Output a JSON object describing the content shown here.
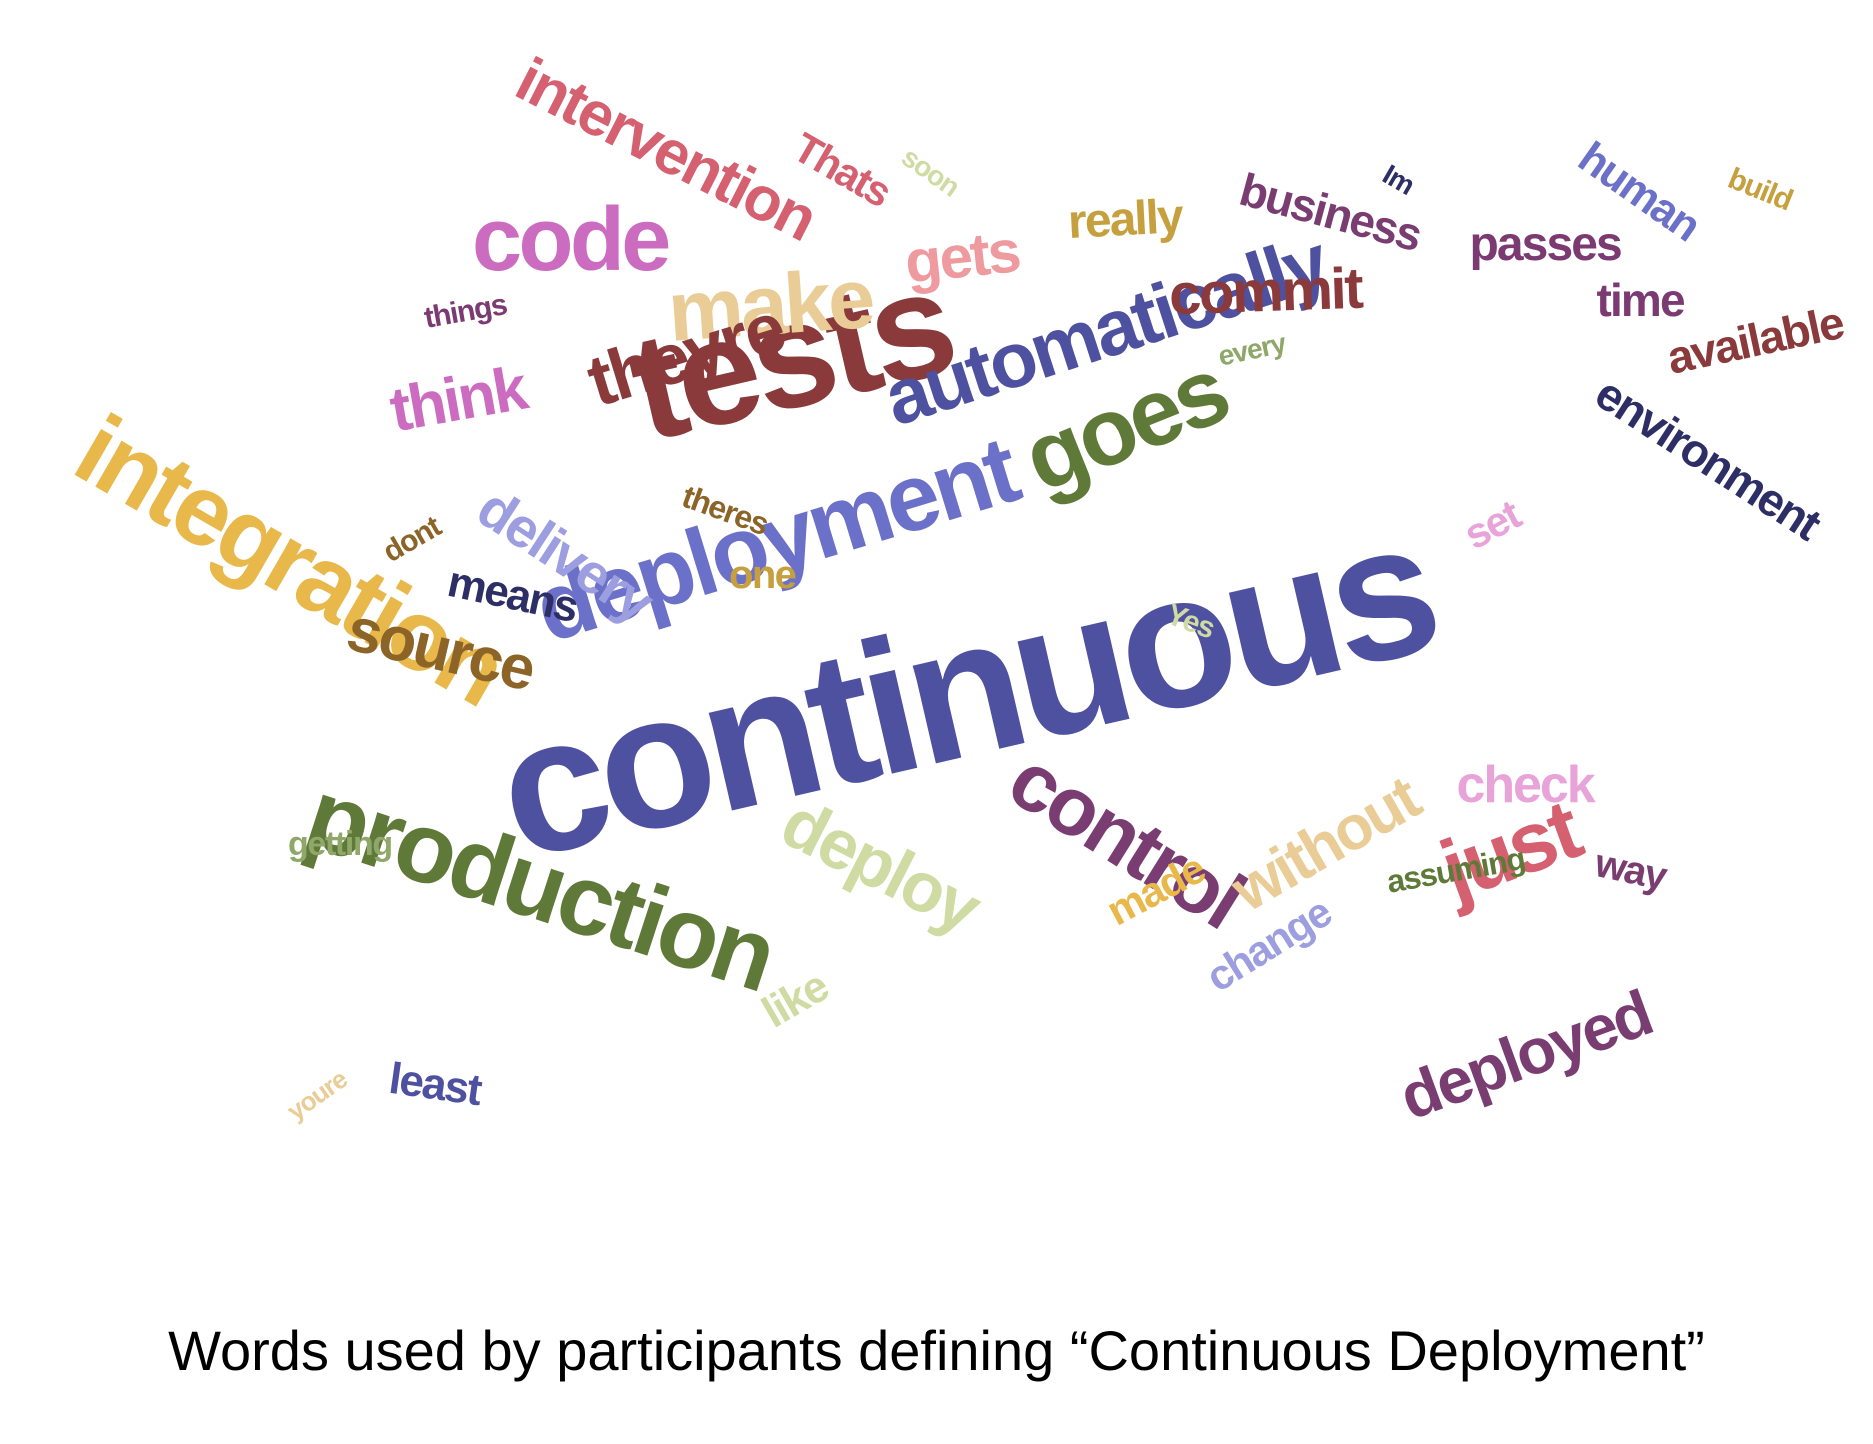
{
  "caption": "Words used by participants defining “Continuous Deployment”",
  "colors": {
    "navy": "#4e51a0",
    "periwinkle": "#6b70c9",
    "lavender": "#9c9ee0",
    "darkred": "#8a3a3a",
    "rose": "#d46070",
    "green": "#5f7a38",
    "sage": "#8fa86a",
    "lightgreen": "#cfdba2",
    "gold": "#e8b84a",
    "mustard": "#c6a03e",
    "tan": "#e9cc96",
    "brown": "#8c6428",
    "purple": "#7a3d72",
    "magenta": "#cc6cc0",
    "pink": "#e8a3d8",
    "salmon": "#ee9a9e",
    "plum": "#7b3a72",
    "darknavy": "#2d2e66"
  },
  "words": [
    {
      "text": "continuous",
      "color": "navy",
      "weight": 10
    },
    {
      "text": "tests",
      "color": "darkred",
      "weight": 8
    },
    {
      "text": "integration",
      "color": "gold",
      "weight": 7
    },
    {
      "text": "production",
      "color": "green",
      "weight": 7
    },
    {
      "text": "deployment",
      "color": "periwinkle",
      "weight": 7
    },
    {
      "text": "automatically",
      "color": "navy",
      "weight": 6
    },
    {
      "text": "goes",
      "color": "green",
      "weight": 6
    },
    {
      "text": "control",
      "color": "purple",
      "weight": 6
    },
    {
      "text": "deploy",
      "color": "lightgreen",
      "weight": 5
    },
    {
      "text": "code",
      "color": "magenta",
      "weight": 5
    },
    {
      "text": "make",
      "color": "tan",
      "weight": 5
    },
    {
      "text": "intervention",
      "color": "rose",
      "weight": 5
    },
    {
      "text": "theyre",
      "color": "darkred",
      "weight": 5
    },
    {
      "text": "just",
      "color": "rose",
      "weight": 5
    },
    {
      "text": "deployed",
      "color": "purple",
      "weight": 4
    },
    {
      "text": "delivery",
      "color": "lavender",
      "weight": 4
    },
    {
      "text": "source",
      "color": "brown",
      "weight": 4
    },
    {
      "text": "without",
      "color": "tan",
      "weight": 4
    },
    {
      "text": "commit",
      "color": "darkred",
      "weight": 4
    },
    {
      "text": "business",
      "color": "purple",
      "weight": 3
    },
    {
      "text": "gets",
      "color": "salmon",
      "weight": 4
    },
    {
      "text": "think",
      "color": "magenta",
      "weight": 4
    },
    {
      "text": "environment",
      "color": "darknavy",
      "weight": 3
    },
    {
      "text": "available",
      "color": "darkred",
      "weight": 3
    },
    {
      "text": "human",
      "color": "periwinkle",
      "weight": 3
    },
    {
      "text": "passes",
      "color": "plum",
      "weight": 3
    },
    {
      "text": "time",
      "color": "plum",
      "weight": 3
    },
    {
      "text": "means",
      "color": "darknavy",
      "weight": 3
    },
    {
      "text": "check",
      "color": "pink",
      "weight": 3
    },
    {
      "text": "way",
      "color": "purple",
      "weight": 3
    },
    {
      "text": "change",
      "color": "lavender",
      "weight": 3
    },
    {
      "text": "made",
      "color": "gold",
      "weight": 3
    },
    {
      "text": "like",
      "color": "lightgreen",
      "weight": 3
    },
    {
      "text": "least",
      "color": "navy",
      "weight": 3
    },
    {
      "text": "one",
      "color": "mustard",
      "weight": 3
    },
    {
      "text": "really",
      "color": "mustard",
      "weight": 3
    },
    {
      "text": "Thats",
      "color": "rose",
      "weight": 3
    },
    {
      "text": "set",
      "color": "pink",
      "weight": 3
    },
    {
      "text": "assuming",
      "color": "green",
      "weight": 2
    },
    {
      "text": "getting",
      "color": "sage",
      "weight": 2
    },
    {
      "text": "theres",
      "color": "brown",
      "weight": 2
    },
    {
      "text": "things",
      "color": "plum",
      "weight": 2
    },
    {
      "text": "dont",
      "color": "brown",
      "weight": 2
    },
    {
      "text": "every",
      "color": "sage",
      "weight": 2
    },
    {
      "text": "Yes",
      "color": "lightgreen",
      "weight": 2
    },
    {
      "text": "soon",
      "color": "lightgreen",
      "weight": 2
    },
    {
      "text": "build",
      "color": "mustard",
      "weight": 2
    },
    {
      "text": "Im",
      "color": "darknavy",
      "weight": 2
    },
    {
      "text": "youre",
      "color": "tan",
      "weight": 2
    }
  ]
}
